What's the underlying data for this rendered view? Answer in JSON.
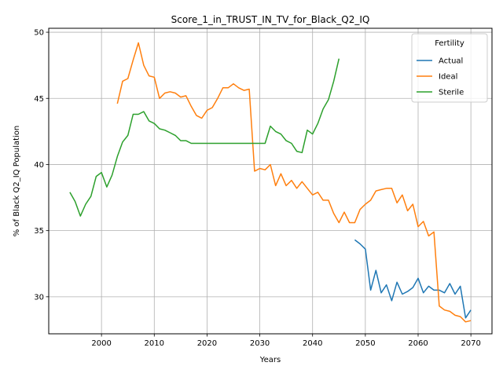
{
  "chart_data": {
    "type": "line",
    "title": "Score_1_in_TRUST_IN_TV_for_Black_Q2_IQ",
    "xlabel": "Years",
    "ylabel": "% of Black Q2_IQ Population",
    "xlim": [
      1990,
      2074
    ],
    "ylim": [
      27.2,
      50.3
    ],
    "xticks": [
      2000,
      2010,
      2020,
      2030,
      2040,
      2050,
      2060,
      2070
    ],
    "yticks": [
      30,
      35,
      40,
      45,
      50
    ],
    "grid": true,
    "legend": {
      "title": "Fertility",
      "position": "top-right"
    },
    "series": [
      {
        "name": "Actual",
        "color": "#1f77b4",
        "x": [
          2048,
          2049,
          2050,
          2051,
          2052,
          2053,
          2054,
          2055,
          2056,
          2057,
          2058,
          2059,
          2060,
          2061,
          2062,
          2063,
          2064,
          2065,
          2066,
          2067,
          2068,
          2069,
          2070
        ],
        "y": [
          34.3,
          34.0,
          33.6,
          30.5,
          32.0,
          30.3,
          30.9,
          29.7,
          31.1,
          30.2,
          30.4,
          30.7,
          31.4,
          30.3,
          30.8,
          30.5,
          30.5,
          30.3,
          31.0,
          30.2,
          30.8,
          28.4,
          29.0
        ]
      },
      {
        "name": "Ideal",
        "color": "#ff7f0e",
        "x": [
          2003,
          2004,
          2005,
          2006,
          2007,
          2008,
          2009,
          2010,
          2011,
          2012,
          2013,
          2014,
          2015,
          2016,
          2017,
          2018,
          2019,
          2020,
          2021,
          2022,
          2023,
          2024,
          2025,
          2026,
          2027,
          2028,
          2029,
          2030,
          2031,
          2032,
          2033,
          2034,
          2035,
          2036,
          2037,
          2038,
          2039,
          2040,
          2041,
          2042,
          2043,
          2044,
          2045,
          2046,
          2047,
          2048,
          2049,
          2050,
          2051,
          2052,
          2053,
          2054,
          2055,
          2056,
          2057,
          2058,
          2059,
          2060,
          2061,
          2062,
          2063,
          2064,
          2065,
          2066,
          2067,
          2068,
          2069,
          2070
        ],
        "y": [
          44.6,
          46.3,
          46.5,
          47.9,
          49.2,
          47.5,
          46.7,
          46.6,
          45.0,
          45.4,
          45.5,
          45.4,
          45.1,
          45.2,
          44.4,
          43.7,
          43.5,
          44.1,
          44.3,
          45.0,
          45.8,
          45.8,
          46.1,
          45.8,
          45.6,
          45.7,
          39.5,
          39.7,
          39.6,
          40.0,
          38.4,
          39.3,
          38.4,
          38.8,
          38.2,
          38.7,
          38.2,
          37.7,
          37.9,
          37.3,
          37.3,
          36.3,
          35.6,
          36.4,
          35.6,
          35.6,
          36.6,
          37.0,
          37.3,
          38.0,
          38.1,
          38.2,
          38.2,
          37.1,
          37.7,
          36.5,
          37.0,
          35.3,
          35.7,
          34.6,
          34.9,
          29.3,
          29.0,
          28.9,
          28.6,
          28.5,
          28.1,
          28.2
        ]
      },
      {
        "name": "Sterile",
        "color": "#2ca02c",
        "x": [
          1994,
          1995,
          1996,
          1997,
          1998,
          1999,
          2000,
          2001,
          2002,
          2003,
          2004,
          2005,
          2006,
          2007,
          2008,
          2009,
          2010,
          2011,
          2012,
          2013,
          2014,
          2015,
          2016,
          2017,
          2018,
          2019,
          2020,
          2021,
          2022,
          2023,
          2024,
          2025,
          2026,
          2027,
          2028,
          2029,
          2030,
          2031,
          2032,
          2033,
          2034,
          2035,
          2036,
          2037,
          2038,
          2039,
          2040,
          2041,
          2042,
          2043,
          2044,
          2045
        ],
        "y": [
          37.9,
          37.2,
          36.1,
          37.0,
          37.6,
          39.1,
          39.4,
          38.3,
          39.2,
          40.6,
          41.7,
          42.2,
          43.8,
          43.8,
          44.0,
          43.3,
          43.1,
          42.7,
          42.6,
          42.4,
          42.2,
          41.8,
          41.8,
          41.6,
          41.6,
          41.6,
          41.6,
          41.6,
          41.6,
          41.6,
          41.6,
          41.6,
          41.6,
          41.6,
          41.6,
          41.6,
          41.6,
          41.6,
          42.9,
          42.5,
          42.3,
          41.8,
          41.6,
          41.0,
          40.9,
          42.6,
          42.3,
          43.1,
          44.2,
          44.9,
          46.3,
          48.0
        ]
      }
    ]
  }
}
